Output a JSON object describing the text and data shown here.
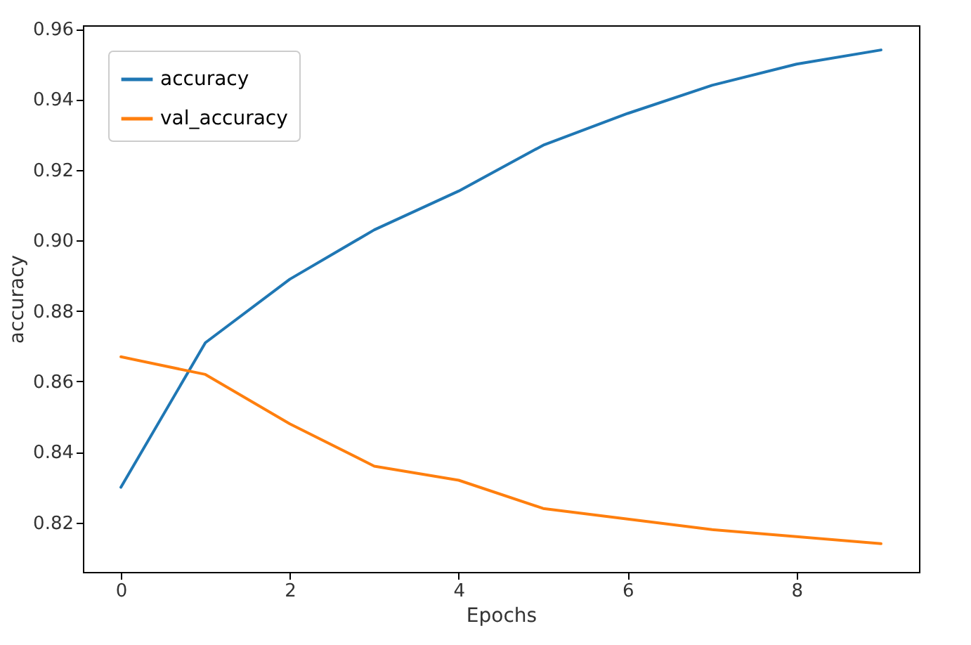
{
  "chart_data": {
    "type": "line",
    "xlabel": "Epochs",
    "ylabel": "accuracy",
    "x": [
      0,
      1,
      2,
      3,
      4,
      5,
      6,
      7,
      8,
      9
    ],
    "series": [
      {
        "name": "accuracy",
        "color": "#1f77b4",
        "values": [
          0.83,
          0.871,
          0.889,
          0.903,
          0.914,
          0.927,
          0.936,
          0.944,
          0.95,
          0.954
        ]
      },
      {
        "name": "val_accuracy",
        "color": "#ff7f0e",
        "values": [
          0.867,
          0.862,
          0.848,
          0.836,
          0.832,
          0.824,
          0.821,
          0.818,
          0.816,
          0.814
        ]
      }
    ],
    "xlim": [
      -0.45,
      9.45
    ],
    "xticks": [
      0,
      2,
      4,
      6,
      8
    ],
    "ylim": [
      0.806,
      0.961
    ],
    "yticks": [
      0.82,
      0.84,
      0.86,
      0.88,
      {
        "value": 0.9,
        "label": "0.90"
      },
      0.92,
      0.94,
      0.96
    ],
    "grid": false,
    "legend": "top left",
    "marker": "none",
    "line_style": "solid"
  }
}
